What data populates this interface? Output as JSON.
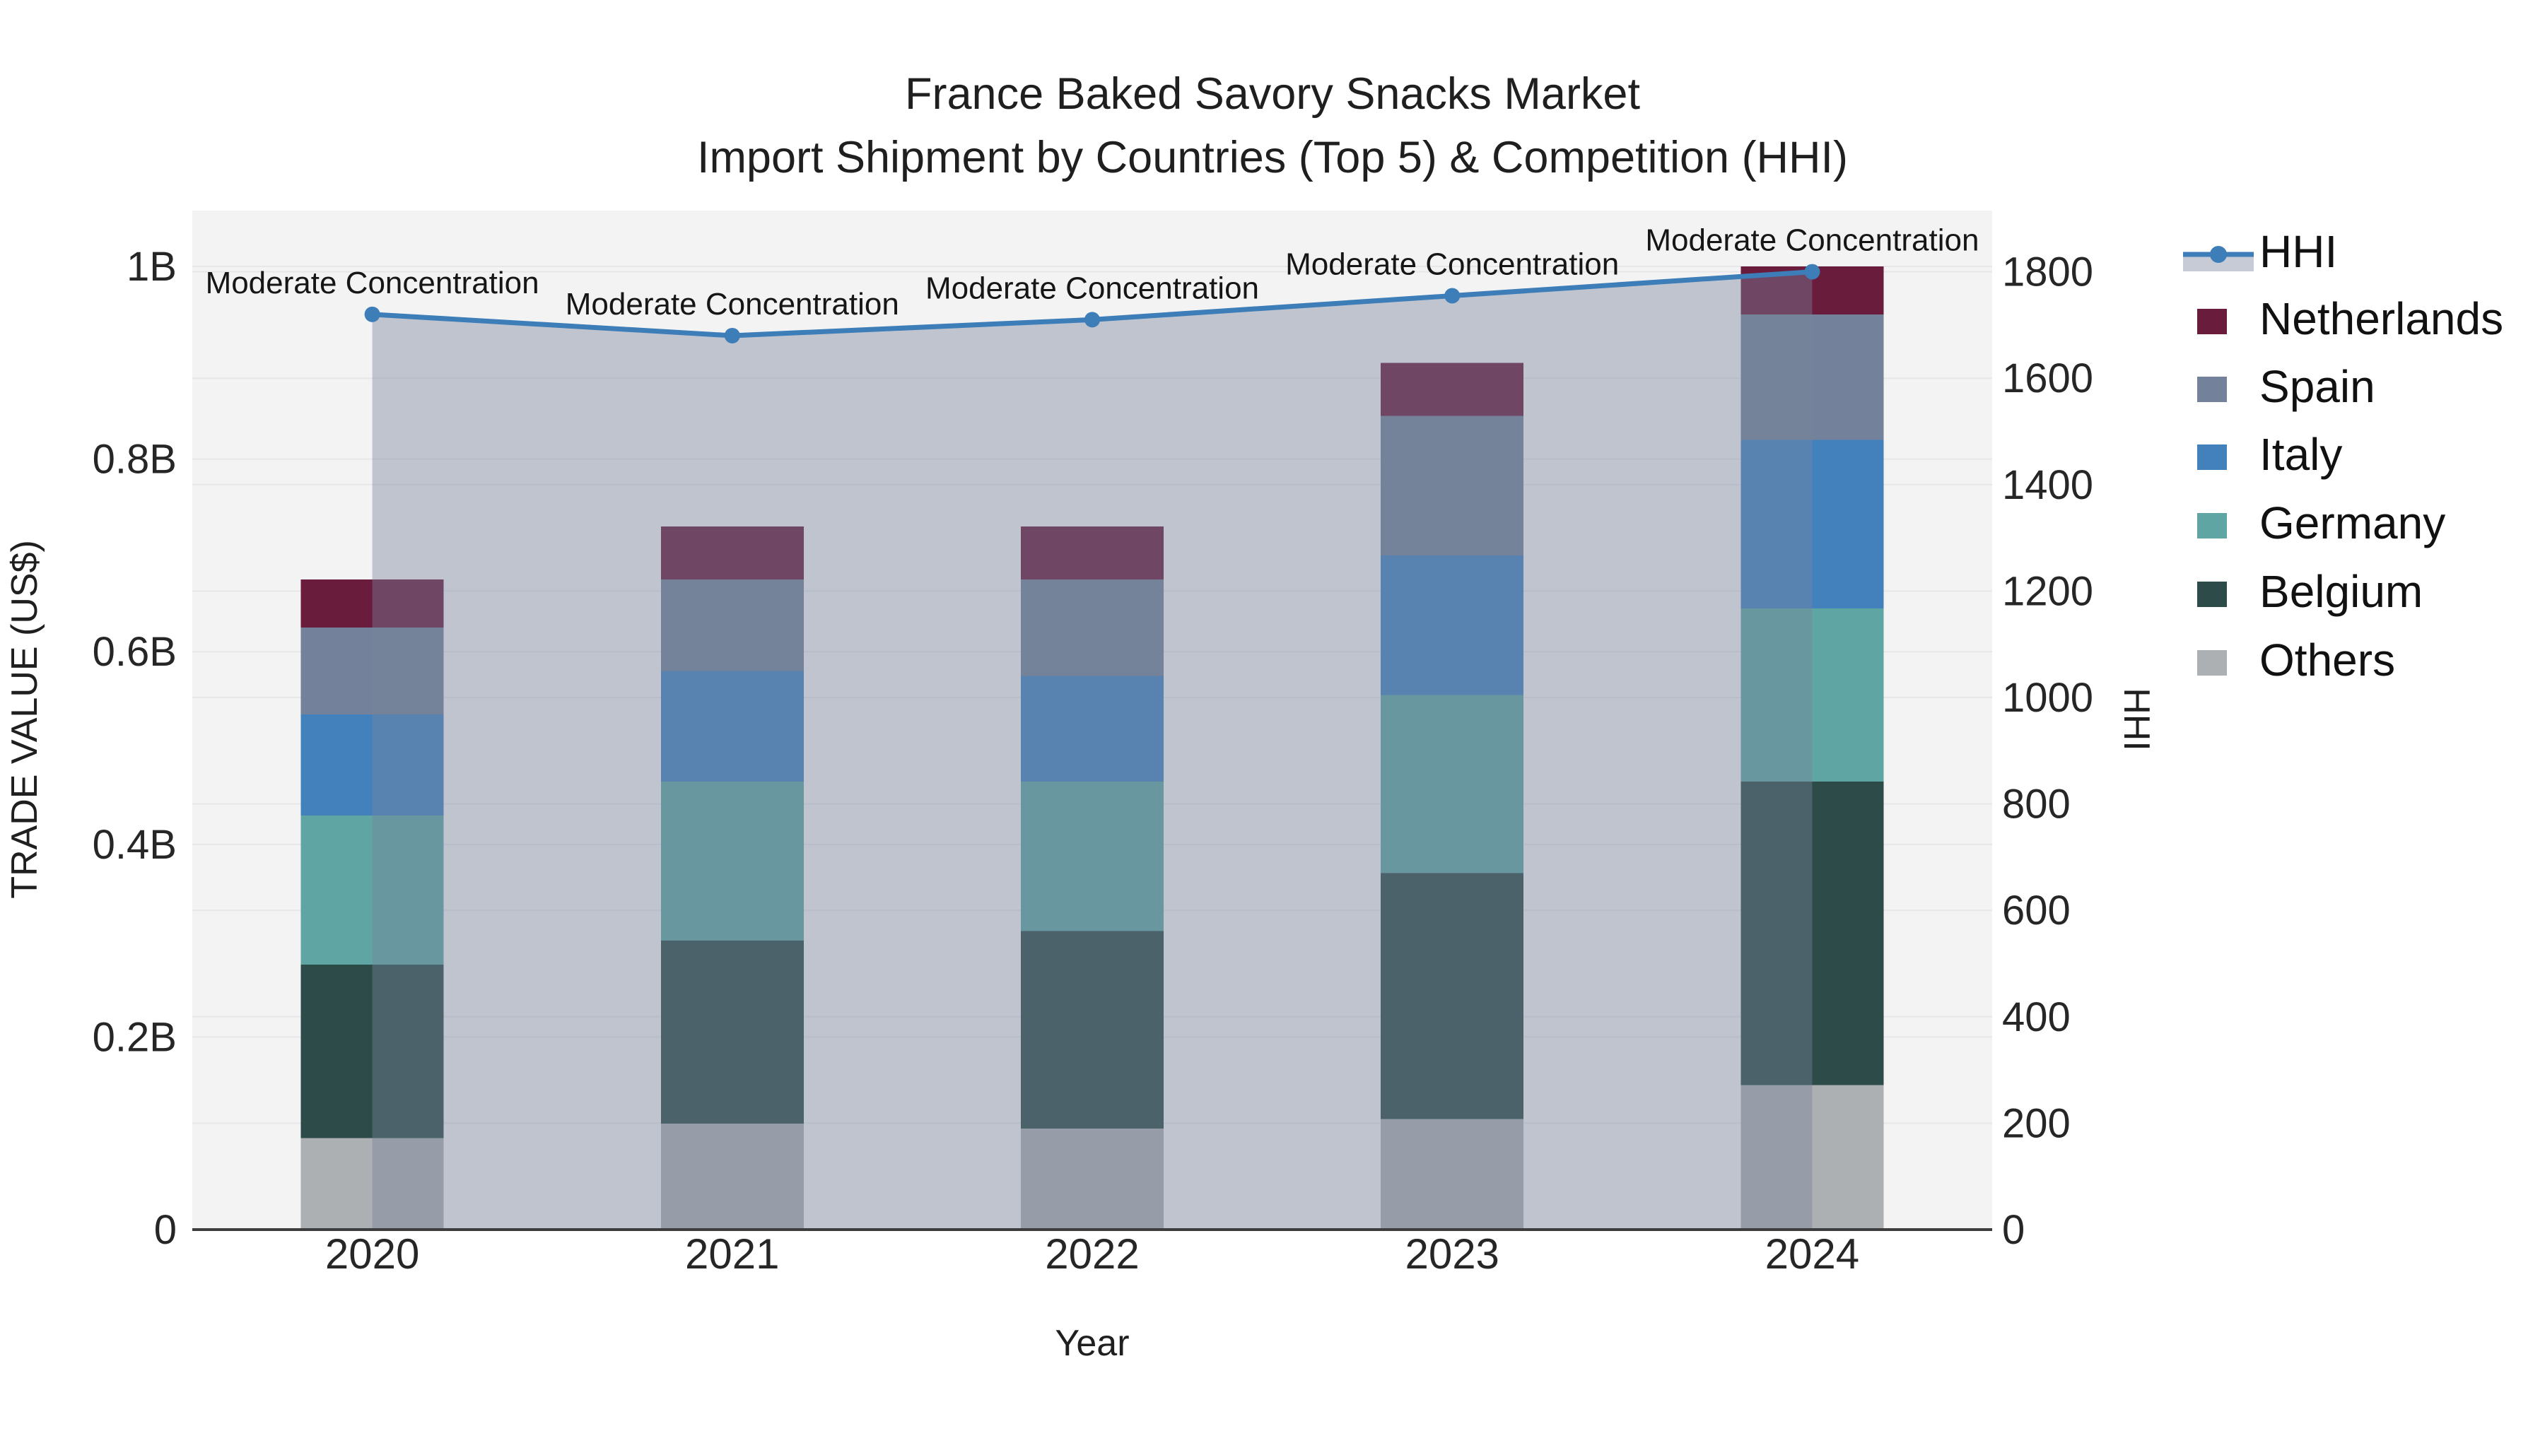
{
  "title": {
    "line1": "France Baked Savory Snacks Market",
    "line2": "Import Shipment by Countries (Top 5) & Competition (HHI)"
  },
  "chart_data": {
    "type": "bar",
    "subtype": "stacked-bar-with-line",
    "categories": [
      "2020",
      "2021",
      "2022",
      "2023",
      "2024"
    ],
    "unit": "billions US$",
    "series": [
      {
        "name": "Others",
        "color": "#adb0b2",
        "values": [
          0.095,
          0.11,
          0.105,
          0.115,
          0.15
        ]
      },
      {
        "name": "Belgium",
        "color": "#2c4b49",
        "values": [
          0.18,
          0.19,
          0.205,
          0.255,
          0.315
        ]
      },
      {
        "name": "Germany",
        "color": "#5fa5a3",
        "values": [
          0.155,
          0.165,
          0.155,
          0.185,
          0.18
        ]
      },
      {
        "name": "Italy",
        "color": "#4381bd",
        "values": [
          0.105,
          0.115,
          0.11,
          0.145,
          0.175
        ]
      },
      {
        "name": "Spain",
        "color": "#73829a",
        "values": [
          0.09,
          0.095,
          0.1,
          0.145,
          0.13
        ]
      },
      {
        "name": "Netherlands",
        "color": "#6a1c3d",
        "values": [
          0.05,
          0.055,
          0.055,
          0.055,
          0.05
        ]
      }
    ],
    "bar_totals": [
      0.675,
      0.73,
      0.73,
      0.9,
      1.0
    ],
    "line_series": {
      "name": "HHI",
      "color": "#3d7db8",
      "band_fill": "rgba(120,132,156,0.42)",
      "values": [
        1720,
        1680,
        1710,
        1755,
        1800
      ],
      "annotation_text": "Moderate Concentration"
    },
    "xlabel": "Year",
    "ylabel": "TRADE VALUE (US$)",
    "y2label": "HHI",
    "ylim": [
      0,
      1.058
    ],
    "y2lim": [
      0,
      1915
    ],
    "grid": true,
    "yticks": [
      {
        "v": 0,
        "label": "0"
      },
      {
        "v": 0.2,
        "label": "0.2B"
      },
      {
        "v": 0.4,
        "label": "0.4B"
      },
      {
        "v": 0.6,
        "label": "0.6B"
      },
      {
        "v": 0.8,
        "label": "0.8B"
      },
      {
        "v": 1,
        "label": "1B"
      }
    ],
    "y2ticks": [
      {
        "v": 0,
        "label": "0"
      },
      {
        "v": 200,
        "label": "200"
      },
      {
        "v": 400,
        "label": "400"
      },
      {
        "v": 600,
        "label": "600"
      },
      {
        "v": 800,
        "label": "800"
      },
      {
        "v": 1000,
        "label": "1000"
      },
      {
        "v": 1200,
        "label": "1200"
      },
      {
        "v": 1400,
        "label": "1400"
      },
      {
        "v": 1600,
        "label": "1600"
      },
      {
        "v": 1800,
        "label": "1800"
      }
    ],
    "legend": {
      "position": "right",
      "items": [
        {
          "label": "HHI",
          "type": "line"
        },
        {
          "label": "Netherlands",
          "type": "box"
        },
        {
          "label": "Spain",
          "type": "box"
        },
        {
          "label": "Italy",
          "type": "box"
        },
        {
          "label": "Germany",
          "type": "box"
        },
        {
          "label": "Belgium",
          "type": "box"
        },
        {
          "label": "Others",
          "type": "box"
        }
      ]
    },
    "plot_bg": "#f3f3f4",
    "grid_color": "#e7e7ea",
    "axis_line_color": "#3d3d3d",
    "text_color": "#1f1f1f"
  }
}
